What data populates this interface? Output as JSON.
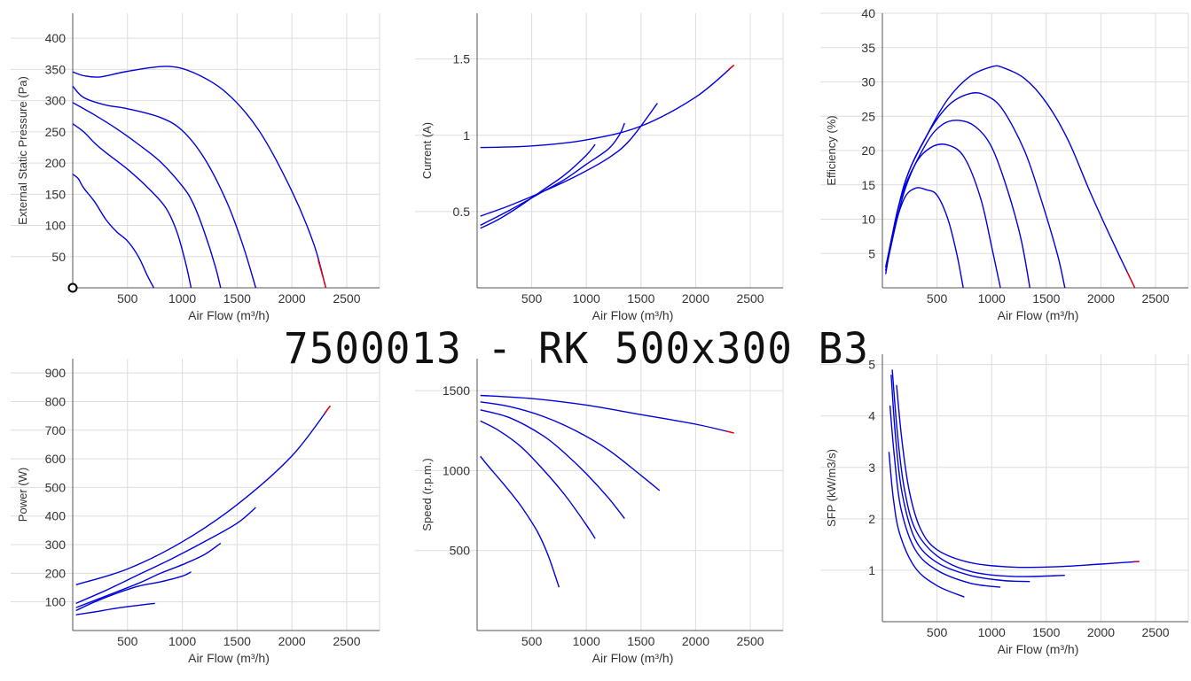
{
  "page": {
    "title": "7500013 - RK 500x300 B3"
  },
  "colors": {
    "curve": "#0000dd",
    "curve_end": "#ee0000",
    "grid": "#dddddd",
    "axis": "#555555",
    "text": "#333333"
  },
  "chart_data": [
    {
      "type": "line",
      "title": "",
      "xlabel": "Air Flow (m³/h)",
      "ylabel": "External Static Pressure (Pa)",
      "xlim": [
        0,
        2800
      ],
      "ylim": [
        0,
        440
      ],
      "xticks": [
        500,
        1000,
        1500,
        2000,
        2500
      ],
      "yticks": [
        50,
        100,
        150,
        200,
        250,
        300,
        350,
        400
      ],
      "grid": true,
      "operating_point": {
        "x": 0,
        "y": 0
      },
      "series": [
        {
          "x": [
            0,
            100,
            250,
            500,
            850,
            1100,
            1400,
            1700,
            2000,
            2200,
            2310
          ],
          "y": [
            346,
            340,
            338,
            347,
            355,
            345,
            313,
            252,
            155,
            70,
            0
          ],
          "end_x": 2240
        },
        {
          "x": [
            0,
            100,
            300,
            500,
            800,
            1000,
            1200,
            1400,
            1550,
            1670
          ],
          "y": [
            323,
            305,
            293,
            287,
            273,
            252,
            208,
            140,
            70,
            0
          ]
        },
        {
          "x": [
            0,
            200,
            400,
            600,
            800,
            1000,
            1100,
            1200,
            1300,
            1350
          ],
          "y": [
            297,
            277,
            255,
            230,
            202,
            163,
            135,
            90,
            35,
            0
          ]
        },
        {
          "x": [
            0,
            100,
            200,
            300,
            500,
            700,
            850,
            950,
            1030,
            1080
          ],
          "y": [
            263,
            250,
            232,
            217,
            190,
            158,
            128,
            90,
            40,
            0
          ]
        },
        {
          "x": [
            0,
            50,
            100,
            200,
            300,
            400,
            500,
            600,
            680,
            740
          ],
          "y": [
            182,
            175,
            160,
            138,
            110,
            90,
            75,
            50,
            20,
            0
          ]
        }
      ]
    },
    {
      "type": "line",
      "title": "",
      "xlabel": "Air Flow (m³/h)",
      "ylabel": "Current (A)",
      "xlim": [
        0,
        2800
      ],
      "ylim": [
        0,
        1.8
      ],
      "xticks": [
        500,
        1000,
        1500,
        2000,
        2500
      ],
      "yticks": [
        0.5,
        1,
        1.5
      ],
      "ytick_labels": [
        "0.5",
        "1",
        "1.5"
      ],
      "grid": true,
      "series": [
        {
          "x": [
            30,
            500,
            1000,
            1500,
            2000,
            2350
          ],
          "y": [
            0.92,
            0.93,
            0.97,
            1.06,
            1.25,
            1.46
          ],
          "end_x": 2300
        },
        {
          "x": [
            30,
            300,
            600,
            900,
            1200,
            1400,
            1650
          ],
          "y": [
            0.47,
            0.54,
            0.63,
            0.73,
            0.85,
            0.97,
            1.21
          ]
        },
        {
          "x": [
            30,
            300,
            600,
            800,
            1000,
            1200,
            1300,
            1350
          ],
          "y": [
            0.41,
            0.51,
            0.63,
            0.71,
            0.81,
            0.91,
            1.0,
            1.08
          ]
        },
        {
          "x": [
            30,
            200,
            400,
            600,
            800,
            1000,
            1080
          ],
          "y": [
            0.39,
            0.45,
            0.54,
            0.64,
            0.74,
            0.87,
            0.94
          ]
        }
      ]
    },
    {
      "type": "line",
      "title": "",
      "xlabel": "Air Flow (m³/h)",
      "ylabel": "Efficiency (%)",
      "xlim": [
        0,
        2800
      ],
      "ylim": [
        0,
        40
      ],
      "xticks": [
        500,
        1000,
        1500,
        2000,
        2500
      ],
      "yticks": [
        5,
        10,
        15,
        20,
        25,
        30,
        35,
        40
      ],
      "grid": true,
      "series": [
        {
          "x": [
            30,
            200,
            400,
            600,
            800,
            1000,
            1100,
            1300,
            1500,
            1700,
            1900,
            2100,
            2310
          ],
          "y": [
            3,
            15,
            22,
            27.5,
            30.8,
            32.2,
            32.1,
            30.5,
            27,
            21.5,
            14,
            7,
            0
          ],
          "end_x": 2240
        },
        {
          "x": [
            30,
            200,
            400,
            600,
            800,
            950,
            1100,
            1300,
            1450,
            1600,
            1670
          ],
          "y": [
            3,
            15,
            22,
            26.5,
            28.3,
            28,
            26,
            20,
            13,
            5,
            0
          ]
        },
        {
          "x": [
            30,
            200,
            400,
            550,
            700,
            850,
            1000,
            1150,
            1270,
            1350
          ],
          "y": [
            2.5,
            14,
            21,
            23.8,
            24.4,
            23.5,
            20.5,
            14,
            7,
            0
          ]
        },
        {
          "x": [
            30,
            150,
            300,
            450,
            600,
            750,
            900,
            1000,
            1080
          ],
          "y": [
            2.5,
            12,
            18,
            20.5,
            20.8,
            19,
            13,
            6,
            0
          ]
        },
        {
          "x": [
            30,
            100,
            200,
            300,
            400,
            500,
            600,
            680,
            740
          ],
          "y": [
            2,
            8,
            13,
            14.5,
            14.3,
            13.5,
            10,
            5,
            0
          ]
        }
      ]
    },
    {
      "type": "line",
      "title": "",
      "xlabel": "Air Flow (m³/h)",
      "ylabel": "Power (W)",
      "xlim": [
        0,
        2800
      ],
      "ylim": [
        0,
        950
      ],
      "xticks": [
        500,
        1000,
        1500,
        2000,
        2500
      ],
      "yticks": [
        100,
        200,
        300,
        400,
        500,
        600,
        700,
        800,
        900
      ],
      "grid": true,
      "series": [
        {
          "x": [
            30,
            500,
            1000,
            1500,
            2000,
            2350
          ],
          "y": [
            160,
            215,
            310,
            440,
            610,
            785
          ],
          "end_x": 2300
        },
        {
          "x": [
            30,
            300,
            600,
            900,
            1200,
            1500,
            1670
          ],
          "y": [
            95,
            140,
            195,
            250,
            310,
            375,
            430
          ]
        },
        {
          "x": [
            30,
            300,
            600,
            800,
            1000,
            1200,
            1350
          ],
          "y": [
            80,
            120,
            165,
            200,
            230,
            265,
            305
          ]
        },
        {
          "x": [
            30,
            200,
            400,
            600,
            800,
            1000,
            1080
          ],
          "y": [
            70,
            100,
            130,
            155,
            170,
            190,
            205
          ]
        },
        {
          "x": [
            30,
            200,
            400,
            600,
            750
          ],
          "y": [
            55,
            65,
            78,
            88,
            95
          ]
        }
      ]
    },
    {
      "type": "line",
      "title": "",
      "xlabel": "Air Flow (m³/h)",
      "ylabel": "Speed (r.p.m.)",
      "xlim": [
        0,
        2800
      ],
      "ylim": [
        0,
        1700
      ],
      "xticks": [
        500,
        1000,
        1500,
        2000,
        2500
      ],
      "yticks": [
        500,
        1000,
        1500
      ],
      "grid": true,
      "series": [
        {
          "x": [
            30,
            500,
            1000,
            1500,
            2000,
            2350
          ],
          "y": [
            1470,
            1450,
            1410,
            1350,
            1290,
            1235
          ],
          "end_x": 2280
        },
        {
          "x": [
            30,
            300,
            600,
            900,
            1200,
            1500,
            1670
          ],
          "y": [
            1430,
            1400,
            1340,
            1250,
            1130,
            970,
            875
          ]
        },
        {
          "x": [
            30,
            300,
            600,
            800,
            1000,
            1200,
            1350
          ],
          "y": [
            1380,
            1330,
            1220,
            1110,
            980,
            830,
            700
          ]
        },
        {
          "x": [
            30,
            200,
            400,
            600,
            800,
            1000,
            1080
          ],
          "y": [
            1310,
            1250,
            1150,
            1010,
            850,
            660,
            575
          ]
        },
        {
          "x": [
            30,
            100,
            250,
            400,
            550,
            650,
            750
          ],
          "y": [
            1090,
            1030,
            910,
            780,
            620,
            470,
            270
          ]
        }
      ]
    },
    {
      "type": "line",
      "title": "",
      "xlabel": "Air Flow (m³/h)",
      "ylabel": "SFP (kW/m3/s)",
      "xlim": [
        0,
        2800
      ],
      "ylim": [
        0,
        5.2
      ],
      "xticks": [
        500,
        1000,
        1500,
        2000,
        2500
      ],
      "yticks": [
        1,
        2,
        3,
        4,
        5
      ],
      "grid": true,
      "series": [
        {
          "x": [
            130,
            180,
            250,
            350,
            500,
            800,
            1200,
            1600,
            2000,
            2350
          ],
          "y": [
            4.6,
            3.5,
            2.5,
            1.8,
            1.4,
            1.15,
            1.06,
            1.07,
            1.12,
            1.17
          ],
          "end_x": 2300
        },
        {
          "x": [
            90,
            140,
            200,
            300,
            500,
            800,
            1200,
            1670
          ],
          "y": [
            4.9,
            3.6,
            2.6,
            1.8,
            1.28,
            0.98,
            0.88,
            0.9
          ]
        },
        {
          "x": [
            80,
            120,
            180,
            300,
            500,
            800,
            1100,
            1350
          ],
          "y": [
            4.8,
            3.6,
            2.5,
            1.6,
            1.15,
            0.9,
            0.8,
            0.78
          ]
        },
        {
          "x": [
            70,
            110,
            170,
            300,
            500,
            800,
            1080
          ],
          "y": [
            4.2,
            3.2,
            2.2,
            1.4,
            1.0,
            0.75,
            0.67
          ]
        },
        {
          "x": [
            60,
            100,
            160,
            300,
            500,
            750
          ],
          "y": [
            3.3,
            2.4,
            1.7,
            1.05,
            0.7,
            0.48
          ]
        }
      ]
    }
  ]
}
